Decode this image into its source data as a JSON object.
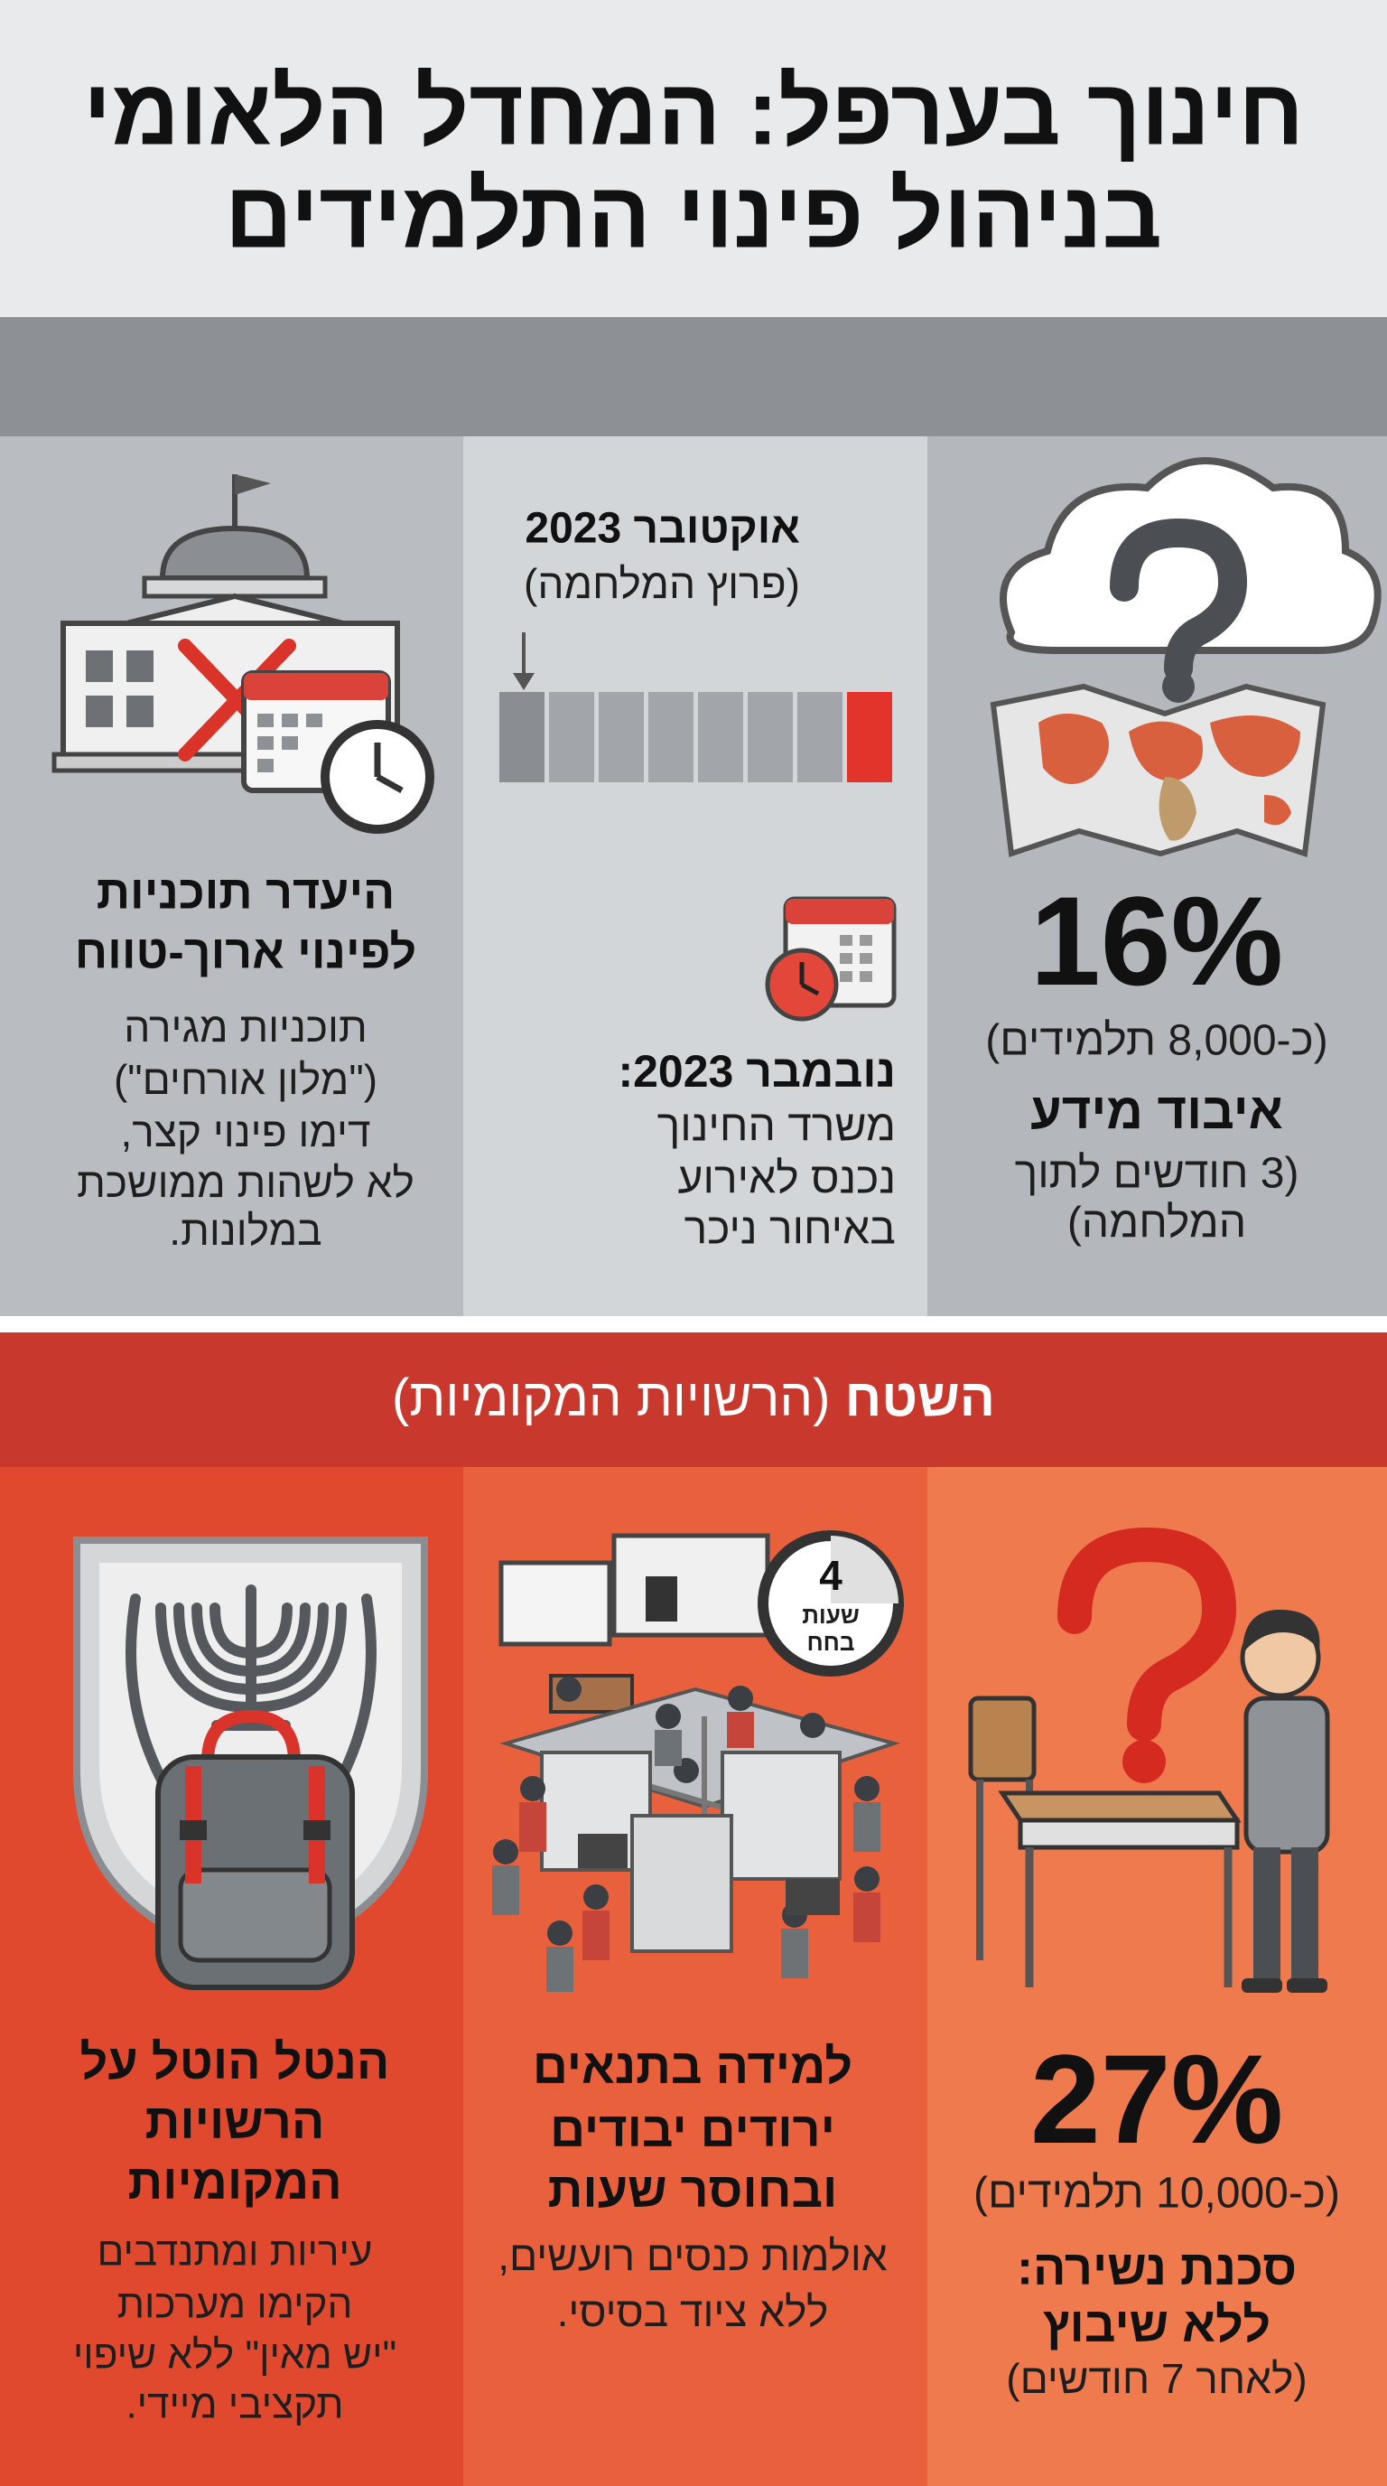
{
  "header": {
    "title_lines": [
      "חינוך בערפל: המחדל הלאומי",
      "בניהול פינוי התלמידים"
    ]
  },
  "national": {
    "columns": [
      {
        "stat": "16%",
        "stat_note": "(כ-8,000 תלמידים)",
        "heading_lines": [
          "איבוד מידע"
        ],
        "body_lines": [
          "(3 חודשים לתוך",
          "המלחמה)"
        ]
      },
      {
        "timeline_label": "אוקטובר 2023",
        "timeline_note": "(פרוץ המלחמה)",
        "heading_lines": [
          "נובמבר 2023:"
        ],
        "body_lines": [
          "משרד החינוך",
          "נכנס לאירוע",
          "באיחור ניכר"
        ]
      },
      {
        "heading_lines": [
          "היעדר תוכניות",
          "לפינוי ארוך-טווח"
        ],
        "body_lines": [
          "תוכניות מגירה",
          "(\"מלון אורחים\")",
          "דימו פינוי קצר,",
          "לא לשהות ממושכת",
          "במלונות."
        ]
      }
    ]
  },
  "field": {
    "title": "השטח",
    "subtitle": "(הרשויות המקומיות)",
    "columns": [
      {
        "stat": "27%",
        "stat_note": "(כ-10,000 תלמידים)",
        "heading_lines": [
          "סכנת נשירה:",
          "ללא שיבוץ"
        ],
        "body_lines": [
          "(לאחר 7 חודשים)"
        ]
      },
      {
        "clock_labels": [
          "4",
          "שעות",
          "בחח"
        ],
        "heading_lines": [
          "למידה בתנאים",
          "ירודים יבודים",
          "ובחוסר שעות"
        ],
        "body_lines": [
          "אולמות כנסים רועשים,",
          "ללא ציוד בסיסי."
        ]
      },
      {
        "heading_lines": [
          "הנטל הוטל על",
          "הרשויות",
          "המקומיות"
        ],
        "body_lines": [
          "עיריות ומתנדבים",
          "הקימו מערכות",
          "\"יש מאין\" ללא שיפוי",
          "תקציבי מיידי."
        ]
      }
    ]
  }
}
